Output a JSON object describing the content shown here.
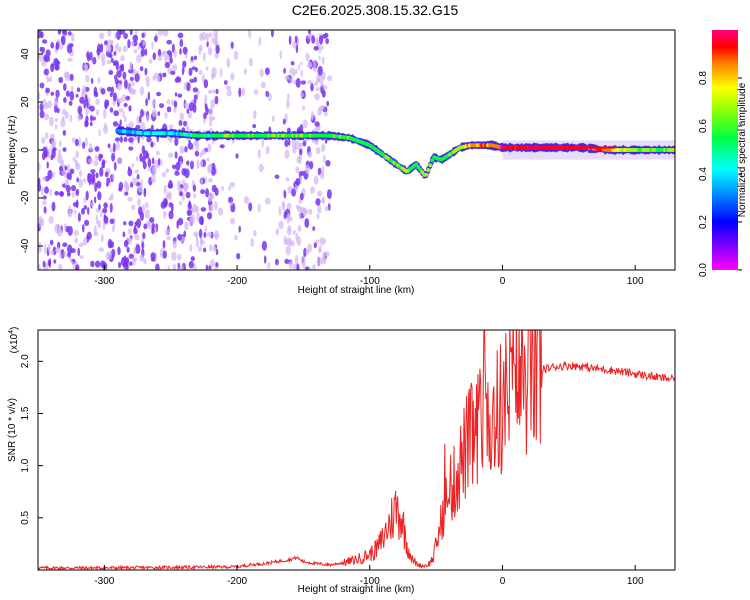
{
  "title": "C2E6.2025.308.15.32.G15",
  "colors": {
    "axis": "#000000",
    "snr_line": "#ee2222",
    "spectrogram_background": "#ffffff",
    "ridge_red": "#ff0000",
    "ridge_green": "#00ff44",
    "ridge_cyan": "#00e0e0",
    "ridge_blue": "#2040ff",
    "noise_purple": "#7a33ee",
    "noise_light": "#d2b4f5"
  },
  "chart_data": [
    {
      "type": "heatmap",
      "name": "spectrogram",
      "xlabel": "Height of straight line (km)",
      "ylabel": "Frequency (Hz)",
      "xlim": [
        -350,
        130
      ],
      "ylim": [
        -50,
        50
      ],
      "x_ticks": [
        -300,
        -200,
        -100,
        0,
        100
      ],
      "x_tick_labels": [
        "-300",
        "-200",
        "-100",
        "0",
        "100"
      ],
      "y_ticks": [
        -40,
        -20,
        0,
        20,
        40
      ],
      "y_tick_labels": [
        "-40",
        "-20",
        "0",
        "20",
        "40"
      ],
      "colorbar": {
        "label": "Normalized spectral amplitude",
        "range": [
          0,
          1
        ],
        "ticks": [
          0.0,
          0.2,
          0.4,
          0.6,
          0.8
        ],
        "tick_labels": [
          "0.0",
          "0.2",
          "0.4",
          "0.6",
          "0.8"
        ],
        "colormap": "rainbow (magenta-blue-cyan-green-yellow-red-magenta)"
      },
      "noise_region_x": [
        -350,
        -130
      ],
      "ridge": {
        "x": [
          -290,
          -270,
          -250,
          -230,
          -210,
          -190,
          -170,
          -150,
          -130,
          -115,
          -100,
          -90,
          -80,
          -72,
          -65,
          -58,
          -52,
          -46,
          -40,
          -32,
          -24,
          -16,
          -8,
          0,
          20,
          40,
          60,
          80,
          100,
          130
        ],
        "frequency": [
          8,
          7,
          7,
          6,
          6,
          6,
          6,
          6,
          6,
          5,
          2,
          -2,
          -6,
          -9,
          -6,
          -11,
          -3,
          -4,
          -2,
          1,
          2,
          2,
          2,
          1,
          1,
          1,
          1,
          0,
          0,
          0
        ],
        "amplitude": [
          0.3,
          0.35,
          0.35,
          0.45,
          0.5,
          0.5,
          0.55,
          0.5,
          0.5,
          0.5,
          0.45,
          0.5,
          0.55,
          0.6,
          0.55,
          0.6,
          0.5,
          0.5,
          0.55,
          0.6,
          0.75,
          0.8,
          0.8,
          0.9,
          0.95,
          0.95,
          0.95,
          0.8,
          0.55,
          0.6
        ]
      }
    },
    {
      "type": "line",
      "name": "snr",
      "xlabel": "Height of straight line (km)",
      "ylabel": "SNR (10 * v/v)",
      "y_multiplier_label": "(x10",
      "y_multiplier_exp": "4",
      "y_multiplier_close": ")",
      "xlim": [
        -350,
        130
      ],
      "ylim": [
        0,
        2.3
      ],
      "x_ticks": [
        -300,
        -200,
        -100,
        0,
        100
      ],
      "x_tick_labels": [
        "-300",
        "-200",
        "-100",
        "0",
        "100"
      ],
      "y_ticks": [
        0.5,
        1.0,
        1.5,
        2.0
      ],
      "y_tick_labels": [
        "0.5",
        "1.0",
        "1.5",
        "2.0"
      ],
      "series": [
        {
          "x": [
            -350,
            -300,
            -250,
            -200,
            -190,
            -180,
            -170,
            -160,
            -155,
            -150,
            -140,
            -130,
            -120,
            -110,
            -100,
            -95,
            -90,
            -85,
            -80,
            -76,
            -72,
            -68,
            -64,
            -60,
            -56,
            -52,
            -48,
            -44,
            -40,
            -36,
            -32,
            -28,
            -24,
            -20,
            -16,
            -12,
            -8,
            -4,
            0,
            5,
            10,
            15,
            20,
            25,
            30,
            40,
            50,
            60,
            70,
            80,
            90,
            100,
            110,
            120,
            130
          ],
          "y": [
            0.02,
            0.02,
            0.025,
            0.03,
            0.05,
            0.06,
            0.08,
            0.1,
            0.12,
            0.08,
            0.06,
            0.05,
            0.07,
            0.1,
            0.15,
            0.2,
            0.3,
            0.45,
            0.6,
            0.5,
            0.25,
            0.1,
            0.05,
            0.04,
            0.05,
            0.12,
            0.35,
            0.6,
            0.7,
            0.85,
            1.0,
            1.15,
            1.25,
            1.3,
            1.35,
            1.4,
            1.45,
            1.5,
            1.55,
            1.7,
            1.8,
            1.85,
            1.88,
            1.9,
            1.92,
            1.95,
            1.96,
            1.95,
            1.93,
            1.92,
            1.9,
            1.88,
            1.86,
            1.84,
            1.83
          ]
        }
      ]
    }
  ]
}
